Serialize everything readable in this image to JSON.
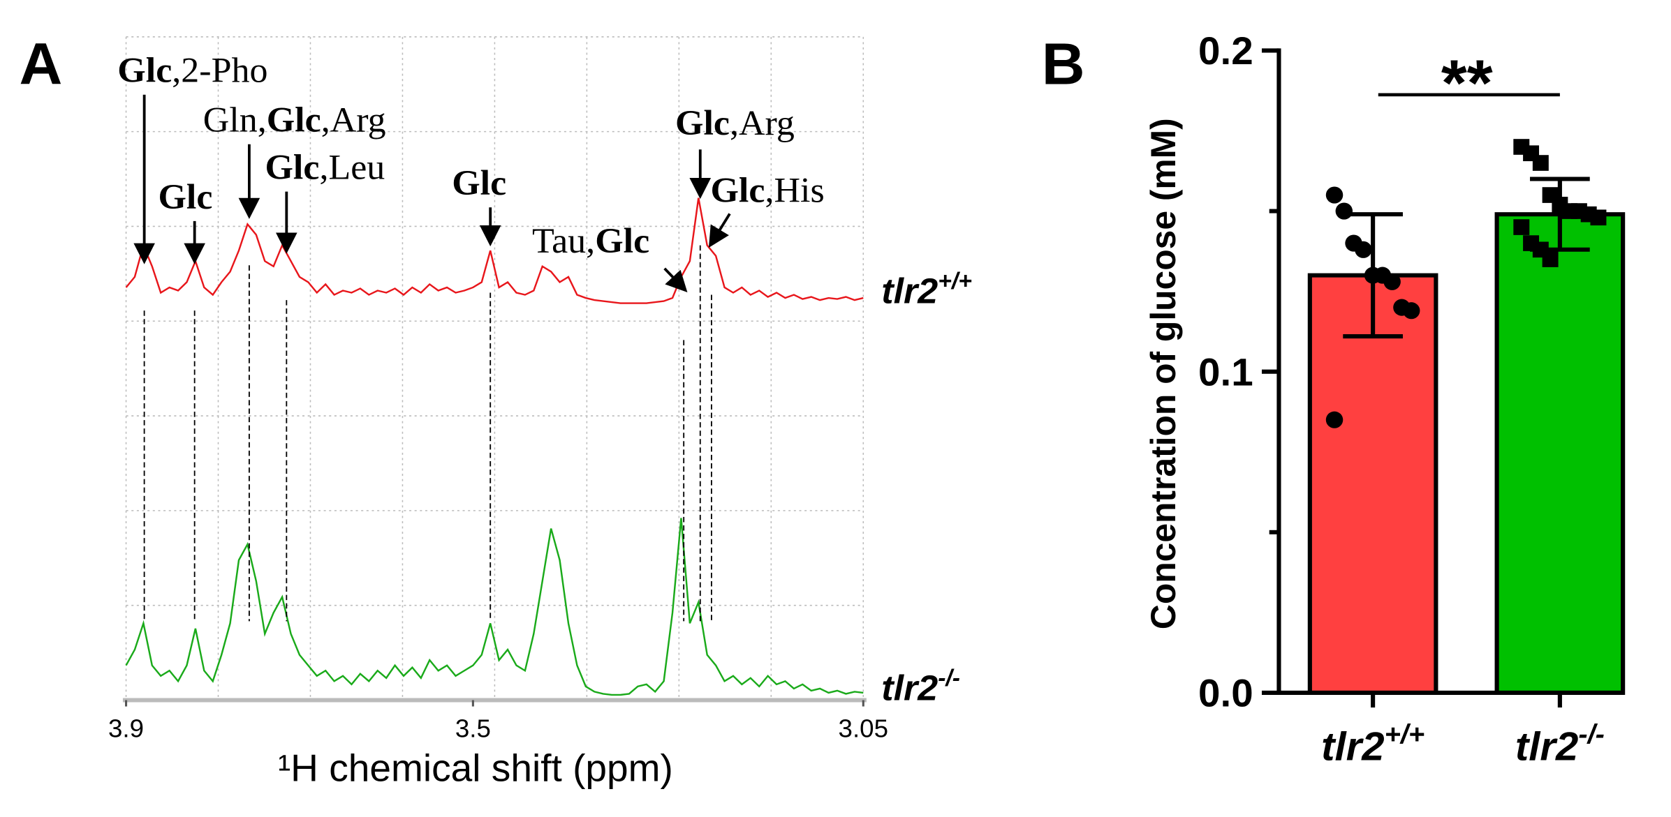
{
  "chart_data": [
    {
      "type": "line",
      "panel_label": "A",
      "xlabel": "¹H chemical shift (ppm)",
      "xlim": [
        3.9,
        3.05
      ],
      "xticks": [
        3.9,
        3.5,
        3.05
      ],
      "grid": true,
      "x": [
        3.9,
        3.89,
        3.88,
        3.87,
        3.86,
        3.85,
        3.84,
        3.83,
        3.82,
        3.81,
        3.8,
        3.79,
        3.78,
        3.77,
        3.76,
        3.75,
        3.74,
        3.73,
        3.72,
        3.71,
        3.7,
        3.69,
        3.68,
        3.67,
        3.66,
        3.65,
        3.64,
        3.63,
        3.62,
        3.61,
        3.6,
        3.59,
        3.58,
        3.57,
        3.56,
        3.55,
        3.54,
        3.53,
        3.52,
        3.51,
        3.5,
        3.49,
        3.48,
        3.47,
        3.46,
        3.45,
        3.44,
        3.43,
        3.42,
        3.41,
        3.4,
        3.39,
        3.38,
        3.37,
        3.36,
        3.35,
        3.34,
        3.33,
        3.32,
        3.31,
        3.3,
        3.29,
        3.28,
        3.27,
        3.26,
        3.25,
        3.24,
        3.23,
        3.22,
        3.21,
        3.2,
        3.19,
        3.18,
        3.17,
        3.16,
        3.15,
        3.14,
        3.13,
        3.12,
        3.11,
        3.1,
        3.09,
        3.08,
        3.07,
        3.06,
        3.05
      ],
      "series": [
        {
          "name": "tlr2",
          "superscript": "+/+",
          "color": "#e8161b",
          "values": [
            15,
            25,
            55,
            35,
            10,
            15,
            12,
            20,
            40,
            15,
            8,
            20,
            30,
            50,
            75,
            65,
            40,
            35,
            55,
            40,
            25,
            20,
            10,
            18,
            8,
            12,
            10,
            14,
            8,
            12,
            10,
            14,
            8,
            15,
            10,
            18,
            12,
            15,
            10,
            12,
            15,
            20,
            50,
            15,
            20,
            10,
            8,
            12,
            35,
            30,
            20,
            25,
            8,
            5,
            3,
            2,
            1,
            0,
            0,
            0,
            0,
            1,
            2,
            5,
            25,
            40,
            100,
            55,
            45,
            15,
            10,
            15,
            8,
            12,
            6,
            10,
            5,
            8,
            4,
            6,
            3,
            5,
            4,
            6,
            3,
            5
          ]
        },
        {
          "name": "tlr2",
          "superscript": "-/-",
          "color": "#1aaa1a",
          "values": [
            30,
            45,
            70,
            30,
            20,
            25,
            15,
            30,
            65,
            25,
            15,
            40,
            70,
            130,
            145,
            110,
            60,
            80,
            95,
            60,
            40,
            30,
            20,
            25,
            15,
            20,
            12,
            22,
            15,
            25,
            18,
            30,
            20,
            28,
            18,
            35,
            25,
            30,
            20,
            25,
            30,
            40,
            70,
            35,
            45,
            30,
            25,
            60,
            110,
            160,
            130,
            70,
            30,
            10,
            5,
            3,
            2,
            2,
            3,
            10,
            12,
            5,
            15,
            80,
            170,
            70,
            90,
            40,
            30,
            15,
            20,
            12,
            18,
            10,
            20,
            12,
            15,
            8,
            12,
            6,
            8,
            4,
            6,
            3,
            5,
            4
          ]
        }
      ],
      "annotations": [
        {
          "x": 3.879,
          "parts": [
            {
              "text": "Glc",
              "bold": true
            },
            {
              "text": ",2-Pho",
              "bold": false
            }
          ]
        },
        {
          "x": 3.821,
          "parts": [
            {
              "text": "Glc",
              "bold": true
            }
          ]
        },
        {
          "x": 3.758,
          "parts": [
            {
              "text": "Gln,",
              "bold": false
            },
            {
              "text": "Glc",
              "bold": true
            },
            {
              "text": ",Arg",
              "bold": false
            }
          ]
        },
        {
          "x": 3.715,
          "parts": [
            {
              "text": "Glc",
              "bold": true
            },
            {
              "text": ",Leu",
              "bold": false
            }
          ]
        },
        {
          "x": 3.48,
          "parts": [
            {
              "text": "Glc",
              "bold": true
            }
          ]
        },
        {
          "x": 3.257,
          "parts": [
            {
              "text": "Tau,",
              "bold": false
            },
            {
              "text": "Glc",
              "bold": true
            }
          ]
        },
        {
          "x": 3.238,
          "parts": [
            {
              "text": "Glc",
              "bold": true
            },
            {
              "text": ",Arg",
              "bold": false
            }
          ]
        },
        {
          "x": 3.225,
          "parts": [
            {
              "text": "Glc",
              "bold": true
            },
            {
              "text": ",His",
              "bold": false
            }
          ]
        }
      ]
    },
    {
      "type": "bar",
      "panel_label": "B",
      "ylabel": "Concentration of glucose (mM)",
      "categories": [
        "tlr2",
        "tlr2"
      ],
      "category_superscripts": [
        "+/+",
        "-/-"
      ],
      "values": [
        0.13,
        0.149
      ],
      "errors": [
        0.019,
        0.011
      ],
      "colors": [
        "#ff4040",
        "#00c000"
      ],
      "points": [
        [
          0.155,
          0.15,
          0.14,
          0.138,
          0.13,
          0.13,
          0.128,
          0.12,
          0.119,
          0.085
        ],
        [
          0.17,
          0.168,
          0.165,
          0.155,
          0.152,
          0.15,
          0.15,
          0.149,
          0.148,
          0.145,
          0.14,
          0.138,
          0.135
        ]
      ],
      "ylim": [
        0,
        0.2
      ],
      "yticks": [
        {
          "value": 0,
          "label": "0.0"
        },
        0.1,
        0.2
      ],
      "minor_yticks": [
        0.05,
        0.15
      ],
      "significance": "**"
    }
  ]
}
